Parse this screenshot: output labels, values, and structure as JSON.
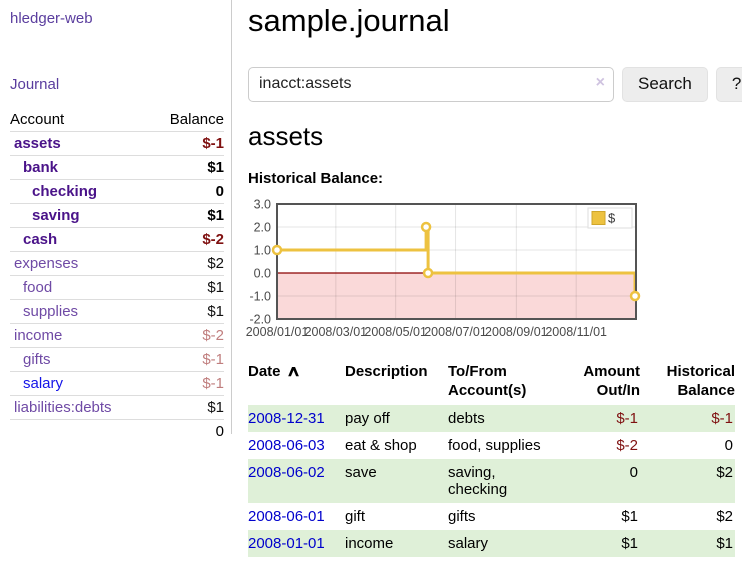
{
  "colors": {
    "account_accent": "#4a1389",
    "link_blue": "#1414e8",
    "negative_strong": "#7f1010",
    "negative_dim": "#c07e7e",
    "row_stripe_green": "#dff0d8",
    "series_gold": "#edc240"
  },
  "sidebar": {
    "brand": "hledger-web",
    "nav": {
      "journal": "Journal"
    },
    "accounts": {
      "headers": {
        "account": "Account",
        "balance": "Balance"
      },
      "rows": [
        {
          "name": "assets",
          "indent": 0,
          "in_query": true,
          "negative": true,
          "balance": "$-1"
        },
        {
          "name": "bank",
          "indent": 1,
          "in_query": true,
          "negative": false,
          "balance": "$1"
        },
        {
          "name": "checking",
          "indent": 2,
          "in_query": true,
          "negative": false,
          "balance": "0"
        },
        {
          "name": "saving",
          "indent": 2,
          "in_query": true,
          "negative": false,
          "balance": "$1"
        },
        {
          "name": "cash",
          "indent": 1,
          "in_query": true,
          "negative": true,
          "balance": "$-2"
        },
        {
          "name": "expenses",
          "indent": 0,
          "in_query": false,
          "negative": false,
          "balance": "$2"
        },
        {
          "name": "food",
          "indent": 1,
          "in_query": false,
          "negative": false,
          "balance": "$1"
        },
        {
          "name": "supplies",
          "indent": 1,
          "in_query": false,
          "negative": false,
          "balance": "$1"
        },
        {
          "name": "income",
          "indent": 0,
          "in_query": false,
          "negative": true,
          "balance": "$-2"
        },
        {
          "name": "gifts",
          "indent": 1,
          "in_query": false,
          "negative": true,
          "balance": "$-1"
        },
        {
          "name": "salary",
          "indent": 1,
          "in_query": false,
          "negative": true,
          "balance": "$-1",
          "link_color": "blue"
        },
        {
          "name": "liabilities:debts",
          "indent": 0,
          "in_query": false,
          "negative": false,
          "balance": "$1"
        }
      ],
      "total": "0"
    }
  },
  "main": {
    "title": "sample.journal",
    "search": {
      "value": "inacct:assets",
      "clear_icon": "×",
      "button": "Search",
      "help_button": "?"
    },
    "account_heading": "assets",
    "chart_label": "Historical Balance:",
    "transactions": {
      "columns": [
        {
          "lines": [
            "Date"
          ],
          "sort": "asc"
        },
        {
          "lines": [
            "Description"
          ]
        },
        {
          "lines": [
            "To/From",
            "Account(s)"
          ]
        },
        {
          "lines": [
            "Amount",
            "Out/In"
          ],
          "align": "right"
        },
        {
          "lines": [
            "Historical",
            "Balance"
          ],
          "align": "right"
        }
      ],
      "rows": [
        {
          "date": "2008-12-31",
          "description": "pay off",
          "accounts": "debts",
          "amount": "$-1",
          "amount_negative": true,
          "balance": "$-1",
          "balance_negative": true
        },
        {
          "date": "2008-06-03",
          "description": "eat & shop",
          "accounts": "food, supplies",
          "amount": "$-2",
          "amount_negative": true,
          "balance": "0",
          "balance_negative": false
        },
        {
          "date": "2008-06-02",
          "description": "save",
          "accounts": "saving,\nchecking",
          "amount": "0",
          "amount_negative": false,
          "balance": "$2",
          "balance_negative": false
        },
        {
          "date": "2008-06-01",
          "description": "gift",
          "accounts": "gifts",
          "amount": "$1",
          "amount_negative": false,
          "balance": "$2",
          "balance_negative": false
        },
        {
          "date": "2008-01-01",
          "description": "income",
          "accounts": "salary",
          "amount": "$1",
          "amount_negative": false,
          "balance": "$1",
          "balance_negative": false
        }
      ]
    }
  },
  "chart_data": {
    "type": "line",
    "title": "Historical Balance:",
    "series": [
      {
        "name": "$",
        "color": "#edc240",
        "step": true,
        "points": [
          [
            "2008-01-01",
            1
          ],
          [
            "2008-06-01",
            2
          ],
          [
            "2008-06-03",
            0
          ],
          [
            "2008-12-31",
            -1
          ]
        ]
      }
    ],
    "x_range": [
      "2008-01-01",
      "2009-01-01"
    ],
    "x_tick_labels": [
      "2008/01/01",
      "2008/03/01",
      "2008/05/01",
      "2008/07/01",
      "2008/09/01",
      "2008/11/01"
    ],
    "y_ticks": [
      "3.0",
      "2.0",
      "1.0",
      "0.0",
      "-1.0",
      "-2.0"
    ],
    "ylim": [
      -2,
      3
    ],
    "grid": true,
    "legend_position": "top-right",
    "negative_region_color": "#fad9d9",
    "zero_line_color": "#8b0000"
  }
}
